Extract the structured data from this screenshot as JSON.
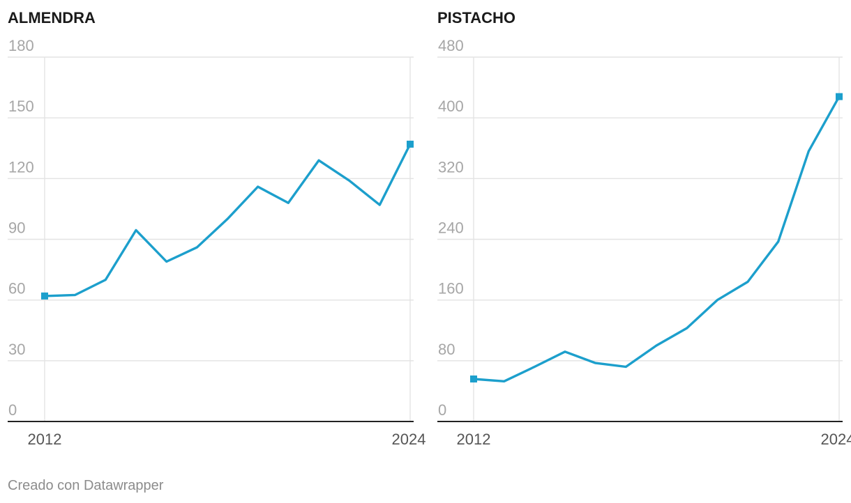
{
  "footer": {
    "credit": "Creado con Datawrapper"
  },
  "colors": {
    "line": "#1c9fcc",
    "grid": "#e3e3e3",
    "tick": "#a6a6a6",
    "baseline": "#222222"
  },
  "chart_data": [
    {
      "type": "line",
      "title": "ALMENDRA",
      "x": [
        2012,
        2013,
        2014,
        2015,
        2016,
        2017,
        2018,
        2019,
        2020,
        2021,
        2022,
        2023,
        2024
      ],
      "x_tick_labels": [
        "2012",
        "2024"
      ],
      "y_ticks": [
        0,
        30,
        60,
        90,
        120,
        150,
        180
      ],
      "ylim": [
        0,
        180
      ],
      "series": [
        {
          "values": [
            62,
            62.5,
            70,
            94.5,
            79,
            86,
            100,
            116,
            108,
            129,
            119,
            107,
            137
          ]
        }
      ],
      "grid": true
    },
    {
      "type": "line",
      "title": "PISTACHO",
      "x": [
        2012,
        2013,
        2014,
        2015,
        2016,
        2017,
        2018,
        2019,
        2020,
        2021,
        2022,
        2023,
        2024
      ],
      "x_tick_labels": [
        "2012",
        "2024"
      ],
      "y_ticks": [
        0,
        80,
        160,
        240,
        320,
        400,
        480
      ],
      "ylim": [
        0,
        480
      ],
      "series": [
        {
          "values": [
            56,
            53,
            72,
            92,
            77,
            72,
            100,
            123,
            160,
            184,
            237,
            356,
            428
          ]
        }
      ],
      "grid": true
    }
  ]
}
